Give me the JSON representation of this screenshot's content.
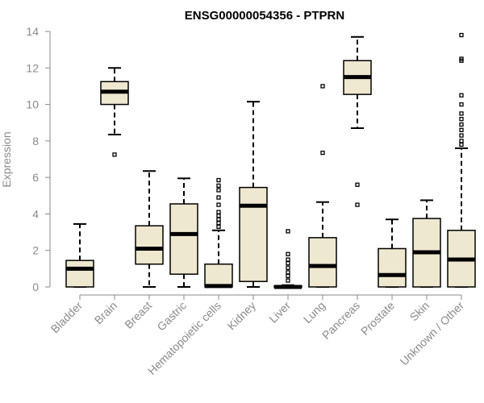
{
  "chart_data": {
    "type": "boxplot",
    "title": "ENSG00000054356 - PTPRN",
    "xlabel": "",
    "ylabel": "Expression",
    "ylim": [
      0,
      14
    ],
    "yticks": [
      0,
      2,
      4,
      6,
      8,
      10,
      12,
      14
    ],
    "grid": false,
    "colors": {
      "box_fill": "#EEE8D0",
      "stroke": "#000000",
      "axis_text": "#8a8a8a"
    },
    "categories": [
      "Bladder",
      "Brain",
      "Breast",
      "Gastric",
      "Hematopoietic cells",
      "Kidney",
      "Liver",
      "Lung",
      "Pancreas",
      "Prostate",
      "Skin",
      "Unknown / Other"
    ],
    "boxes": [
      {
        "category": "Bladder",
        "whisker_low": 0,
        "q1": 0,
        "median": 1.0,
        "q3": 1.45,
        "whisker_high": 3.45,
        "outliers": []
      },
      {
        "category": "Brain",
        "whisker_low": 8.35,
        "q1": 10.0,
        "median": 10.7,
        "q3": 11.25,
        "whisker_high": 12.0,
        "outliers": [
          7.25
        ]
      },
      {
        "category": "Breast",
        "whisker_low": 0,
        "q1": 1.25,
        "median": 2.1,
        "q3": 3.35,
        "whisker_high": 6.35,
        "outliers": []
      },
      {
        "category": "Gastric",
        "whisker_low": 0,
        "q1": 0.7,
        "median": 2.9,
        "q3": 4.55,
        "whisker_high": 5.95,
        "outliers": []
      },
      {
        "category": "Hematopoietic cells",
        "whisker_low": 0,
        "q1": 0,
        "median": 0.05,
        "q3": 1.25,
        "whisker_high": 3.1,
        "outliers": [
          3.3,
          3.5,
          3.7,
          3.9,
          4.1,
          4.5,
          4.9,
          5.3,
          5.55,
          5.85
        ]
      },
      {
        "category": "Kidney",
        "whisker_low": 0,
        "q1": 0.3,
        "median": 4.45,
        "q3": 5.45,
        "whisker_high": 10.15,
        "outliers": []
      },
      {
        "category": "Liver",
        "whisker_low": 0,
        "q1": 0,
        "median": 0,
        "q3": 0.05,
        "whisker_high": 0.1,
        "outliers": [
          0.35,
          0.6,
          0.8,
          1.05,
          1.3,
          1.5,
          1.8,
          3.05
        ]
      },
      {
        "category": "Lung",
        "whisker_low": 0,
        "q1": 0,
        "median": 1.15,
        "q3": 2.7,
        "whisker_high": 4.65,
        "outliers": [
          7.35,
          11.0
        ]
      },
      {
        "category": "Pancreas",
        "whisker_low": 8.7,
        "q1": 10.55,
        "median": 11.5,
        "q3": 12.4,
        "whisker_high": 13.7,
        "outliers": [
          4.5,
          5.6
        ]
      },
      {
        "category": "Prostate",
        "whisker_low": 0,
        "q1": 0,
        "median": 0.65,
        "q3": 2.1,
        "whisker_high": 3.7,
        "outliers": []
      },
      {
        "category": "Skin",
        "whisker_low": 0,
        "q1": 0,
        "median": 1.9,
        "q3": 3.75,
        "whisker_high": 4.75,
        "outliers": []
      },
      {
        "category": "Unknown / Other",
        "whisker_low": 0,
        "q1": 0,
        "median": 1.5,
        "q3": 3.1,
        "whisker_high": 7.6,
        "outliers": [
          7.8,
          8.0,
          8.3,
          8.6,
          8.9,
          9.2,
          9.5,
          10.0,
          10.5,
          12.4,
          12.5,
          13.8
        ]
      }
    ]
  }
}
